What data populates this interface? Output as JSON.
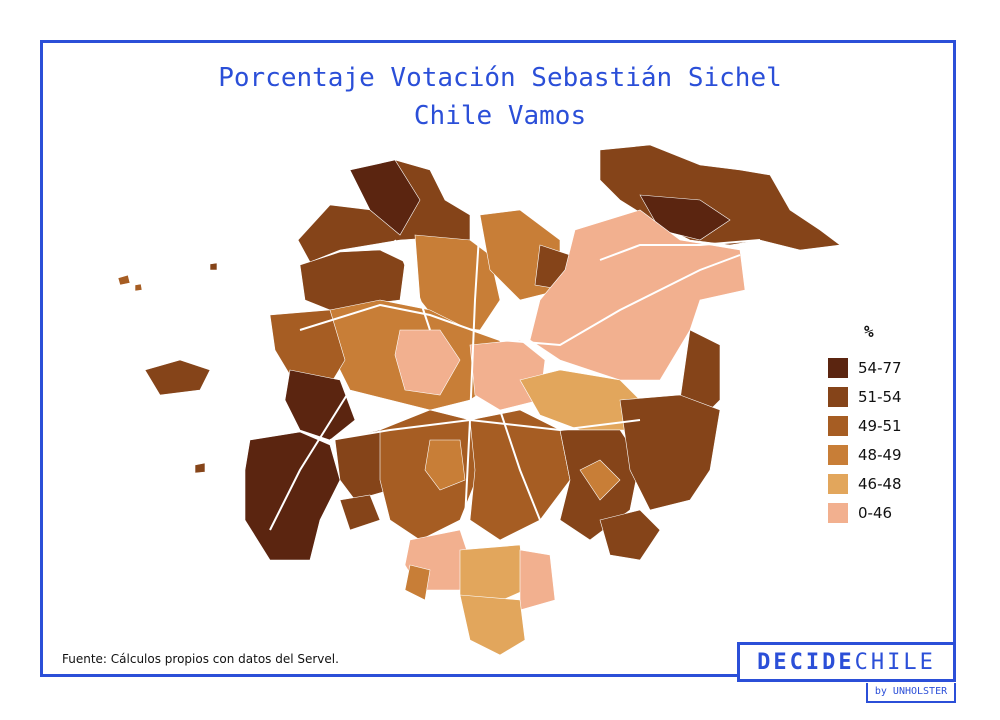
{
  "title_line1": "Porcentaje Votación Sebastián Sichel",
  "title_line2": "Chile Vamos",
  "legend": {
    "title": "%",
    "items": [
      {
        "label": "54-77",
        "color": "#5b2510"
      },
      {
        "label": "51-54",
        "color": "#854419"
      },
      {
        "label": "49-51",
        "color": "#a65d23"
      },
      {
        "label": "48-49",
        "color": "#c87e37"
      },
      {
        "label": "46-48",
        "color": "#e2a65c"
      },
      {
        "label": "0-46",
        "color": "#f2b08f"
      }
    ]
  },
  "source": "Fuente: Cálculos propios con datos del Servel.",
  "logo": {
    "bold": "DECIDE",
    "light": "CHILE",
    "byline": "by UNHOLSTER"
  }
}
